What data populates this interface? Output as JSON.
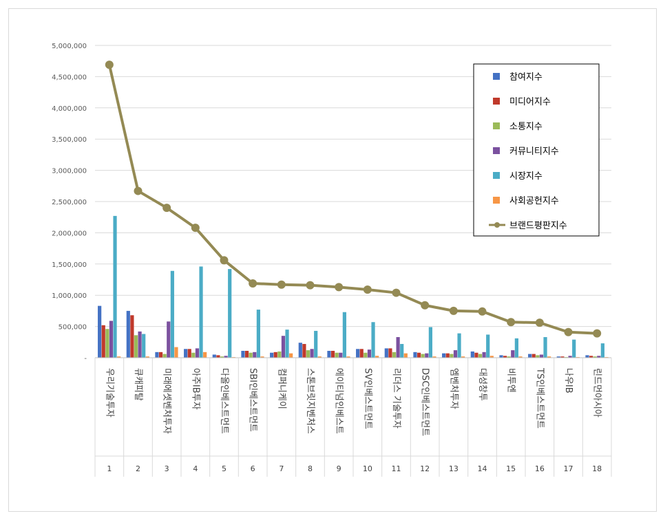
{
  "chart_data": {
    "type": "bar",
    "title": "",
    "xlabel": "",
    "ylabel": "",
    "ylim": [
      0,
      5000000
    ],
    "yticks": [
      0,
      500000,
      1000000,
      1500000,
      2000000,
      2500000,
      3000000,
      3500000,
      4000000,
      4500000,
      5000000
    ],
    "ytick_labels": [
      "-",
      "500,000",
      "1,000,000",
      "1,500,000",
      "2,000,000",
      "2,500,000",
      "3,000,000",
      "3,500,000",
      "4,000,000",
      "4,500,000",
      "5,000,000"
    ],
    "grid": true,
    "legend_position": "top-right",
    "categories": [
      "우리기술투자",
      "큐캐피탈",
      "미래에셋벤처투자",
      "아주IB투자",
      "다올인베스트먼트",
      "SBI인베스트먼트",
      "컴퍼니케이",
      "스톤브릿지벤처스",
      "에이티넘인베스트",
      "SV인베스트먼트",
      "리더스 기술투자",
      "DSC인베스트먼트",
      "엠벤처투자",
      "대성창투",
      "비투엔",
      "TS인베스트먼트",
      "나우IB",
      "린드먼아시아"
    ],
    "ranks": [
      "1",
      "2",
      "3",
      "4",
      "5",
      "6",
      "7",
      "8",
      "9",
      "10",
      "11",
      "12",
      "13",
      "14",
      "15",
      "16",
      "17",
      "18"
    ],
    "series": [
      {
        "name": "참여지수",
        "type": "bar",
        "color": "#4472c4",
        "values": [
          830000,
          750000,
          90000,
          140000,
          50000,
          110000,
          80000,
          240000,
          110000,
          140000,
          150000,
          90000,
          70000,
          100000,
          40000,
          60000,
          20000,
          40000
        ]
      },
      {
        "name": "미디어지수",
        "type": "bar",
        "color": "#c0392b",
        "values": [
          520000,
          680000,
          90000,
          140000,
          40000,
          110000,
          90000,
          220000,
          110000,
          140000,
          150000,
          80000,
          70000,
          80000,
          30000,
          60000,
          20000,
          30000
        ]
      },
      {
        "name": "소통지수",
        "type": "bar",
        "color": "#9bbb59",
        "values": [
          460000,
          360000,
          60000,
          80000,
          20000,
          80000,
          100000,
          120000,
          80000,
          80000,
          90000,
          60000,
          60000,
          60000,
          20000,
          40000,
          10000,
          20000
        ]
      },
      {
        "name": "커뮤니티지수",
        "type": "bar",
        "color": "#7b519f",
        "values": [
          590000,
          420000,
          580000,
          150000,
          30000,
          90000,
          350000,
          140000,
          80000,
          130000,
          330000,
          70000,
          120000,
          90000,
          120000,
          50000,
          30000,
          30000
        ]
      },
      {
        "name": "시장지수",
        "type": "bar",
        "color": "#4bacc6",
        "values": [
          2270000,
          380000,
          1390000,
          1460000,
          1420000,
          770000,
          450000,
          430000,
          730000,
          570000,
          220000,
          490000,
          390000,
          370000,
          310000,
          330000,
          290000,
          230000
        ]
      },
      {
        "name": "사회공헌지수",
        "type": "bar",
        "color": "#f79646",
        "values": [
          20000,
          20000,
          170000,
          90000,
          10000,
          20000,
          70000,
          20000,
          20000,
          30000,
          70000,
          20000,
          20000,
          30000,
          20000,
          20000,
          10000,
          10000
        ]
      },
      {
        "name": "브랜드평판지수",
        "type": "line",
        "color": "#948a54",
        "values": [
          4690000,
          2670000,
          2400000,
          2080000,
          1560000,
          1190000,
          1170000,
          1160000,
          1130000,
          1090000,
          1040000,
          840000,
          750000,
          740000,
          570000,
          560000,
          410000,
          390000
        ]
      }
    ]
  }
}
